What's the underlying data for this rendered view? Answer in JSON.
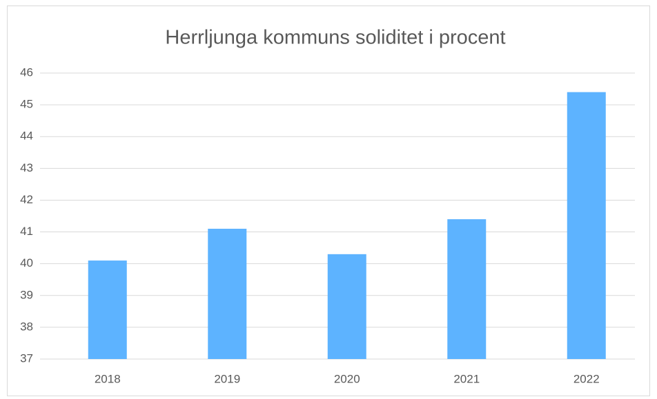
{
  "chart_data": {
    "type": "bar",
    "title": "Herrljunga kommuns soliditet i procent",
    "categories": [
      "2018",
      "2019",
      "2020",
      "2021",
      "2022"
    ],
    "values": [
      40.1,
      41.1,
      40.3,
      41.4,
      45.4
    ],
    "color": "#5db3ff",
    "ylim": [
      37,
      46
    ],
    "yticks": [
      37,
      38,
      39,
      40,
      41,
      42,
      43,
      44,
      45,
      46
    ],
    "grid": true
  }
}
